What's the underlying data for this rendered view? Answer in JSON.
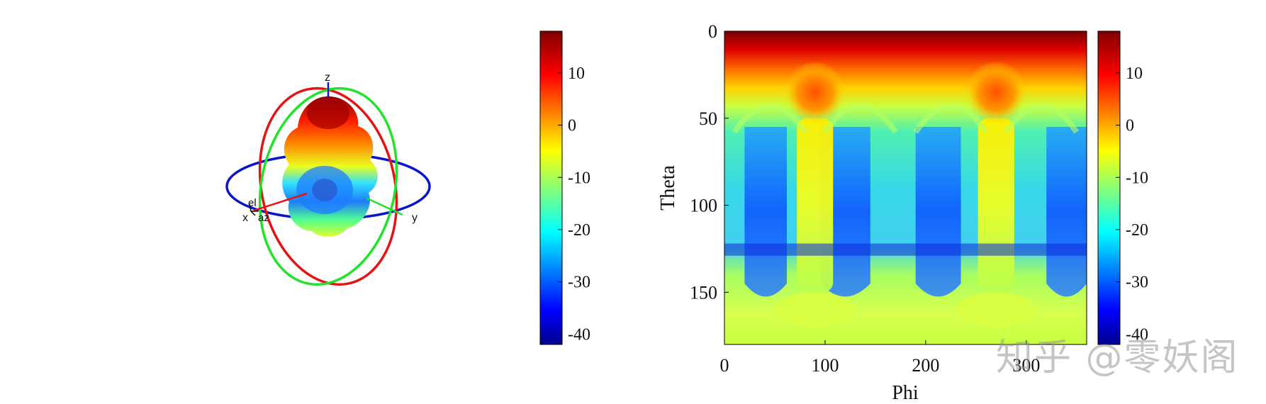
{
  "chart_data": [
    {
      "type": "other",
      "subtype": "3d-radiation-pattern",
      "axis_labels": {
        "x": "x",
        "y": "y",
        "z": "z",
        "el": "el",
        "az": "az"
      },
      "colorbar": {
        "range": [
          -42,
          18
        ],
        "ticks": [
          10,
          0,
          -10,
          -20,
          -30,
          -40
        ],
        "colormap": "jet"
      }
    },
    {
      "type": "heatmap",
      "xlabel": "Phi",
      "ylabel": "Theta",
      "xlim": [
        0,
        360
      ],
      "ylim": [
        0,
        180
      ],
      "y_reversed": true,
      "xticks": [
        0,
        100,
        200,
        300
      ],
      "yticks": [
        0,
        50,
        100,
        150
      ],
      "colorbar": {
        "range": [
          -42,
          18
        ],
        "ticks": [
          10,
          0,
          -10,
          -20,
          -30,
          -40
        ],
        "colormap": "jet"
      }
    }
  ],
  "watermark": "知乎 @零妖阁"
}
